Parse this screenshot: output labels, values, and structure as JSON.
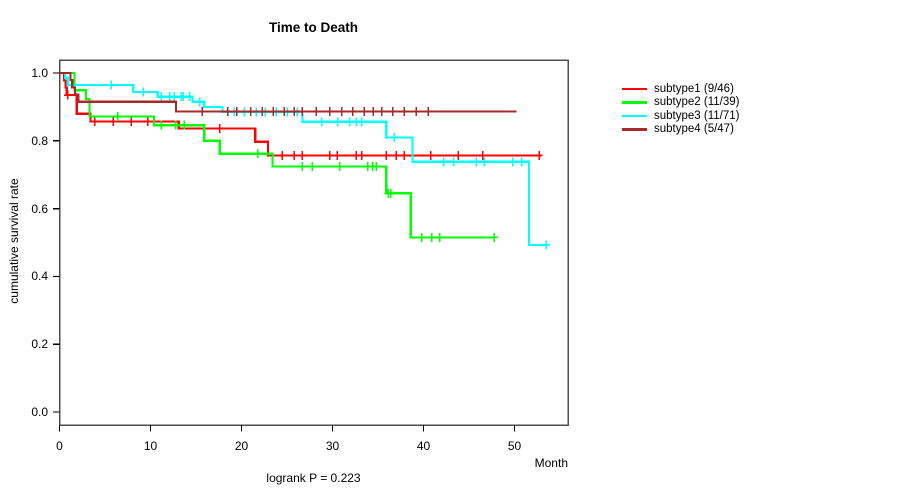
{
  "chart_data": {
    "type": "line",
    "variant": "kaplan-meier-step",
    "title": "Time to Death",
    "xlabel": "Month",
    "ylabel": "cumulative survival rate",
    "annotation": "logrank P = 0.223",
    "xlim": [
      0,
      55.8
    ],
    "ylim": [
      0.0,
      1.04
    ],
    "xticks": [
      0,
      10,
      20,
      30,
      40,
      50
    ],
    "yticks": [
      0.0,
      0.2,
      0.4,
      0.6,
      0.8,
      1.0
    ],
    "grid": false,
    "legend_position": "right-outside",
    "series": [
      {
        "name": "subtype1 (9/46)",
        "color": "#FF0000",
        "steps": [
          [
            0,
            1.0
          ],
          [
            0.5,
            0.978
          ],
          [
            0.65,
            0.957
          ],
          [
            0.8,
            0.935
          ],
          [
            1.9,
            0.88
          ],
          [
            3.4,
            0.857
          ],
          [
            13.1,
            0.836
          ],
          [
            21.5,
            0.797
          ],
          [
            22.9,
            0.757
          ]
        ],
        "end": 53.0,
        "censors": [
          0.9,
          3.9,
          5.9,
          7.9,
          9.7,
          17.6,
          24.5,
          25.8,
          26.7,
          29.7,
          30.5,
          32.6,
          33.2,
          35.9,
          37.0,
          37.9,
          40.8,
          43.8,
          46.5,
          52.7
        ]
      },
      {
        "name": "subtype2 (11/39)",
        "color": "#00FF00",
        "steps": [
          [
            0,
            1.0
          ],
          [
            1.65,
            0.949
          ],
          [
            2.9,
            0.923
          ],
          [
            3.3,
            0.872
          ],
          [
            10.4,
            0.846
          ],
          [
            15.9,
            0.8
          ],
          [
            17.6,
            0.762
          ],
          [
            23.4,
            0.724
          ],
          [
            35.9,
            0.645
          ],
          [
            38.6,
            0.515
          ]
        ],
        "end": 47.8,
        "censors": [
          6.4,
          11.2,
          12.8,
          13.7,
          21.8,
          26.7,
          27.8,
          30.8,
          33.9,
          34.4,
          34.8,
          36.1,
          36.4,
          39.8,
          40.9,
          41.8,
          47.8
        ]
      },
      {
        "name": "subtype3 (11/71)",
        "color": "#00FFFF",
        "steps": [
          [
            0,
            1.0
          ],
          [
            0.6,
            0.986
          ],
          [
            0.9,
            0.965
          ],
          [
            8.1,
            0.944
          ],
          [
            10.8,
            0.93
          ],
          [
            14.6,
            0.915
          ],
          [
            15.9,
            0.9
          ],
          [
            17.9,
            0.885
          ],
          [
            26.7,
            0.856
          ],
          [
            35.9,
            0.81
          ],
          [
            38.8,
            0.738
          ],
          [
            51.6,
            0.493
          ]
        ],
        "end": 53.8,
        "censors": [
          5.7,
          9.2,
          11.2,
          12.1,
          12.6,
          13.4,
          13.6,
          14.3,
          15.4,
          19.2,
          20.3,
          21.6,
          22.6,
          23.8,
          25.0,
          26.1,
          28.8,
          30.6,
          31.9,
          32.6,
          33.2,
          36.8,
          42.2,
          43.3,
          45.8,
          46.7,
          49.8,
          50.8,
          53.5
        ]
      },
      {
        "name": "subtype4 (5/47)",
        "color": "#A52A2A",
        "steps": [
          [
            0,
            1.0
          ],
          [
            1.2,
            0.979
          ],
          [
            1.4,
            0.957
          ],
          [
            1.7,
            0.936
          ],
          [
            2.1,
            0.915
          ],
          [
            12.8,
            0.886
          ]
        ],
        "end": 50.2,
        "censors": [
          15.7,
          18.5,
          19.5,
          21.0,
          22.3,
          23.5,
          24.7,
          25.8,
          26.7,
          28.2,
          29.7,
          31.0,
          32.2,
          33.5,
          34.5,
          35.4,
          36.6,
          37.9,
          39.2,
          40.5
        ]
      }
    ]
  }
}
